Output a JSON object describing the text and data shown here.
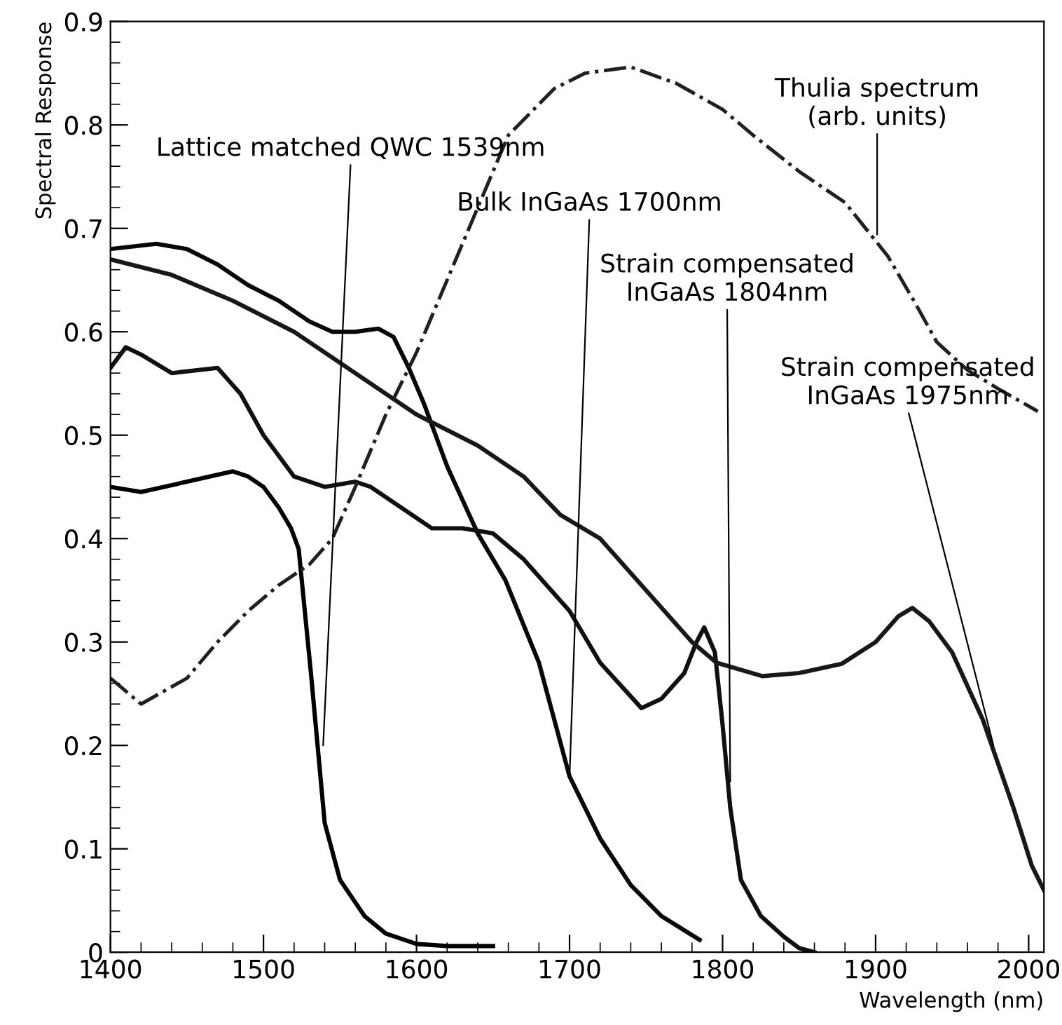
{
  "chart_data": {
    "type": "line",
    "xlabel": "Wavelength (nm)",
    "ylabel": "Spectral Response",
    "xlim": [
      1400,
      2010
    ],
    "ylim": [
      0,
      0.9
    ],
    "xticks": [
      1400,
      1500,
      1600,
      1700,
      1800,
      1900,
      2000
    ],
    "yticks": [
      0,
      0.1,
      0.2,
      0.3,
      0.4,
      0.5,
      0.6,
      0.7,
      0.8,
      0.9
    ],
    "grid": false,
    "legend": false,
    "marker": "none",
    "line_style": "solid",
    "series": [
      {
        "color": "#000000",
        "x": [
          1400,
          1420,
          1450,
          1480,
          1490,
          1500,
          1510,
          1518,
          1523,
          1531,
          1540,
          1550,
          1566,
          1580,
          1600,
          1620,
          1650
        ],
        "values": [
          0.45,
          0.445,
          0.455,
          0.465,
          0.46,
          0.45,
          0.43,
          0.41,
          0.39,
          0.27,
          0.125,
          0.07,
          0.035,
          0.018,
          0.008,
          0.006,
          0.006
        ]
      },
      {
        "color": "#080808",
        "x": [
          1400,
          1430,
          1450,
          1470,
          1490,
          1510,
          1530,
          1545,
          1560,
          1575,
          1585,
          1595,
          1605,
          1620,
          1640,
          1658,
          1680,
          1700,
          1720,
          1740,
          1760,
          1785
        ],
        "values": [
          0.68,
          0.685,
          0.68,
          0.665,
          0.645,
          0.63,
          0.61,
          0.6,
          0.6,
          0.603,
          0.595,
          0.565,
          0.53,
          0.47,
          0.405,
          0.36,
          0.28,
          0.17,
          0.11,
          0.065,
          0.035,
          0.012
        ]
      },
      {
        "color": "#101010",
        "x": [
          1400,
          1410,
          1420,
          1440,
          1470,
          1485,
          1500,
          1520,
          1540,
          1560,
          1570,
          1590,
          1610,
          1630,
          1650,
          1670,
          1700,
          1720,
          1747,
          1760,
          1775,
          1783,
          1788,
          1795,
          1800,
          1805,
          1812,
          1825,
          1840,
          1850,
          1860
        ],
        "values": [
          0.565,
          0.585,
          0.578,
          0.56,
          0.565,
          0.54,
          0.5,
          0.46,
          0.45,
          0.455,
          0.45,
          0.43,
          0.41,
          0.41,
          0.405,
          0.38,
          0.33,
          0.28,
          0.236,
          0.245,
          0.27,
          0.3,
          0.314,
          0.29,
          0.22,
          0.14,
          0.07,
          0.035,
          0.015,
          0.004,
          0.0
        ]
      },
      {
        "color": "#181818",
        "x": [
          1400,
          1440,
          1480,
          1520,
          1560,
          1600,
          1640,
          1670,
          1694,
          1720,
          1750,
          1780,
          1796,
          1826,
          1850,
          1878,
          1900,
          1915,
          1924,
          1935,
          1950,
          1970,
          1990,
          2002,
          2010
        ],
        "values": [
          0.67,
          0.655,
          0.63,
          0.6,
          0.56,
          0.52,
          0.49,
          0.46,
          0.423,
          0.4,
          0.35,
          0.3,
          0.28,
          0.267,
          0.27,
          0.279,
          0.3,
          0.325,
          0.333,
          0.32,
          0.29,
          0.225,
          0.14,
          0.084,
          0.06
        ]
      },
      {
        "color": "#202020",
        "line_style": "dashdot",
        "x": [
          1400,
          1420,
          1450,
          1470,
          1490,
          1510,
          1530,
          1545,
          1560,
          1580,
          1600,
          1620,
          1640,
          1660,
          1690,
          1710,
          1740,
          1770,
          1800,
          1820,
          1850,
          1880,
          1908,
          1925,
          1940,
          1960,
          1980,
          2006
        ],
        "values": [
          0.265,
          0.24,
          0.265,
          0.3,
          0.33,
          0.355,
          0.375,
          0.4,
          0.45,
          0.52,
          0.58,
          0.65,
          0.72,
          0.79,
          0.835,
          0.85,
          0.856,
          0.84,
          0.815,
          0.79,
          0.755,
          0.725,
          0.673,
          0.63,
          0.59,
          0.563,
          0.545,
          0.523
        ]
      }
    ],
    "annotations": [
      {
        "text": "Lattice matched QWC 1539nm",
        "x": 1539,
        "y": 0.2
      },
      {
        "text": "Bulk InGaAs 1700nm",
        "x": 1700,
        "y": 0.17
      },
      {
        "text": "Strain compensated\nInGaAs 1804nm",
        "x": 1805,
        "y": 0.165
      },
      {
        "text": "Strain compensated\nInGaAs 1975nm",
        "x": 1977,
        "y": 0.2
      },
      {
        "text": "Thulia spectrum\n(arb. units)",
        "x": 1901,
        "y": 0.694
      }
    ]
  }
}
